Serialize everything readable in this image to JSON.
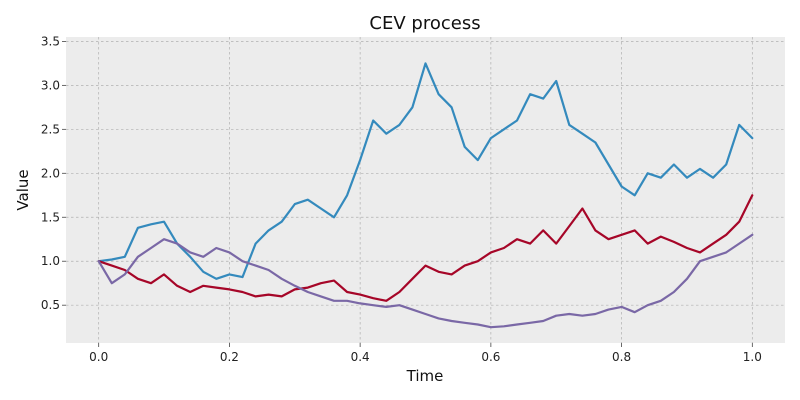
{
  "chart_data": {
    "type": "line",
    "title": "CEV process",
    "xlabel": "Time",
    "ylabel": "Value",
    "xlim": [
      -0.05,
      1.05
    ],
    "ylim": [
      0.07,
      3.55
    ],
    "xticks": [
      0.0,
      0.2,
      0.4,
      0.6,
      0.8,
      1.0
    ],
    "xtick_labels": [
      "0.0",
      "0.2",
      "0.4",
      "0.6",
      "0.8",
      "1.0"
    ],
    "yticks": [
      0.5,
      1.0,
      1.5,
      2.0,
      2.5,
      3.0,
      3.5
    ],
    "ytick_labels": [
      "0.5",
      "1.0",
      "1.5",
      "2.0",
      "2.5",
      "3.0",
      "3.5"
    ],
    "grid": true,
    "background": "#ececec",
    "series": [
      {
        "color": "#348abd",
        "x": [
          0.0,
          0.02,
          0.04,
          0.06,
          0.08,
          0.1,
          0.12,
          0.14,
          0.16,
          0.18,
          0.2,
          0.22,
          0.24,
          0.26,
          0.28,
          0.3,
          0.32,
          0.34,
          0.36,
          0.38,
          0.4,
          0.42,
          0.44,
          0.46,
          0.48,
          0.5,
          0.52,
          0.54,
          0.56,
          0.58,
          0.6,
          0.62,
          0.64,
          0.66,
          0.68,
          0.7,
          0.72,
          0.74,
          0.76,
          0.78,
          0.8,
          0.82,
          0.84,
          0.86,
          0.88,
          0.9,
          0.92,
          0.94,
          0.96,
          0.98,
          1.0
        ],
        "y": [
          1.0,
          1.02,
          1.05,
          1.38,
          1.42,
          1.45,
          1.2,
          1.05,
          0.88,
          0.8,
          0.85,
          0.82,
          1.2,
          1.35,
          1.45,
          1.65,
          1.7,
          1.6,
          1.5,
          1.75,
          2.15,
          2.6,
          2.45,
          2.55,
          2.75,
          3.25,
          2.9,
          2.75,
          2.3,
          2.15,
          2.4,
          2.5,
          2.6,
          2.9,
          2.85,
          3.05,
          2.55,
          2.45,
          2.35,
          2.1,
          1.85,
          1.75,
          2.0,
          1.95,
          2.1,
          1.95,
          2.05,
          1.95,
          2.1,
          2.55,
          2.4
        ]
      },
      {
        "color": "#a60628",
        "x": [
          0.0,
          0.02,
          0.04,
          0.06,
          0.08,
          0.1,
          0.12,
          0.14,
          0.16,
          0.18,
          0.2,
          0.22,
          0.24,
          0.26,
          0.28,
          0.3,
          0.32,
          0.34,
          0.36,
          0.38,
          0.4,
          0.42,
          0.44,
          0.46,
          0.48,
          0.5,
          0.52,
          0.54,
          0.56,
          0.58,
          0.6,
          0.62,
          0.64,
          0.66,
          0.68,
          0.7,
          0.72,
          0.74,
          0.76,
          0.78,
          0.8,
          0.82,
          0.84,
          0.86,
          0.88,
          0.9,
          0.92,
          0.94,
          0.96,
          0.98,
          1.0
        ],
        "y": [
          1.0,
          0.95,
          0.9,
          0.8,
          0.75,
          0.85,
          0.72,
          0.65,
          0.72,
          0.7,
          0.68,
          0.65,
          0.6,
          0.62,
          0.6,
          0.68,
          0.7,
          0.75,
          0.78,
          0.65,
          0.62,
          0.58,
          0.55,
          0.65,
          0.8,
          0.95,
          0.88,
          0.85,
          0.95,
          1.0,
          1.1,
          1.15,
          1.25,
          1.2,
          1.35,
          1.2,
          1.4,
          1.6,
          1.35,
          1.25,
          1.3,
          1.35,
          1.2,
          1.28,
          1.22,
          1.15,
          1.1,
          1.2,
          1.3,
          1.45,
          1.75
        ]
      },
      {
        "color": "#7a68a6",
        "x": [
          0.0,
          0.02,
          0.04,
          0.06,
          0.08,
          0.1,
          0.12,
          0.14,
          0.16,
          0.18,
          0.2,
          0.22,
          0.24,
          0.26,
          0.28,
          0.3,
          0.32,
          0.34,
          0.36,
          0.38,
          0.4,
          0.42,
          0.44,
          0.46,
          0.48,
          0.5,
          0.52,
          0.54,
          0.56,
          0.58,
          0.6,
          0.62,
          0.64,
          0.66,
          0.68,
          0.7,
          0.72,
          0.74,
          0.76,
          0.78,
          0.8,
          0.82,
          0.84,
          0.86,
          0.88,
          0.9,
          0.92,
          0.94,
          0.96,
          0.98,
          1.0
        ],
        "y": [
          1.0,
          0.75,
          0.85,
          1.05,
          1.15,
          1.25,
          1.2,
          1.1,
          1.05,
          1.15,
          1.1,
          1.0,
          0.95,
          0.9,
          0.8,
          0.72,
          0.65,
          0.6,
          0.55,
          0.55,
          0.52,
          0.5,
          0.48,
          0.5,
          0.45,
          0.4,
          0.35,
          0.32,
          0.3,
          0.28,
          0.25,
          0.26,
          0.28,
          0.3,
          0.32,
          0.38,
          0.4,
          0.38,
          0.4,
          0.45,
          0.48,
          0.42,
          0.5,
          0.55,
          0.65,
          0.8,
          1.0,
          1.05,
          1.1,
          1.2,
          1.3
        ]
      }
    ]
  }
}
